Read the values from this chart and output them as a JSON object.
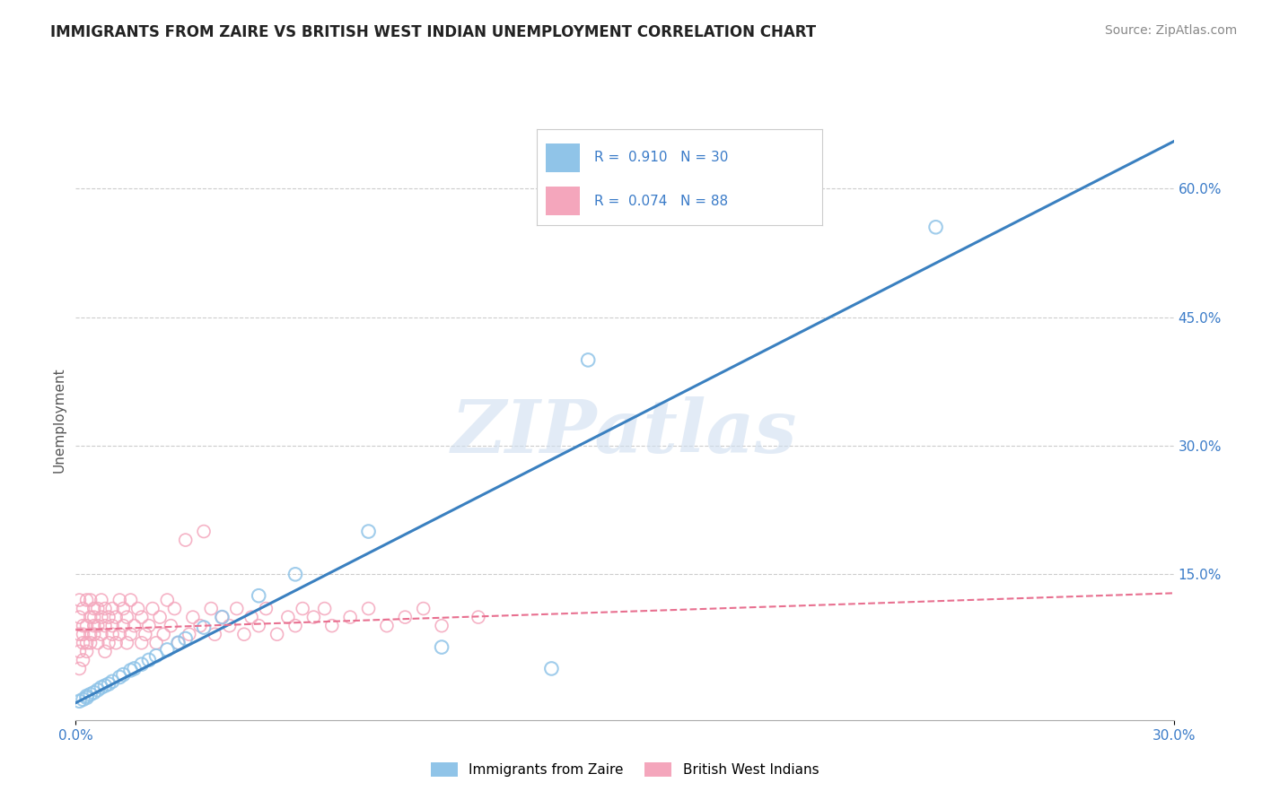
{
  "title": "IMMIGRANTS FROM ZAIRE VS BRITISH WEST INDIAN UNEMPLOYMENT CORRELATION CHART",
  "source": "Source: ZipAtlas.com",
  "ylabel": "Unemployment",
  "xlim": [
    0.0,
    0.3
  ],
  "ylim": [
    -0.02,
    0.68
  ],
  "xtick_vals": [
    0.0,
    0.3
  ],
  "xtick_labels": [
    "0.0%",
    "30.0%"
  ],
  "ytick_vals_right": [
    0.15,
    0.3,
    0.45,
    0.6
  ],
  "ytick_labels_right": [
    "15.0%",
    "30.0%",
    "45.0%",
    "60.0%"
  ],
  "grid_color": "#cccccc",
  "background_color": "#ffffff",
  "blue_color": "#90c4e8",
  "pink_color": "#f4a6bc",
  "blue_line_color": "#3a80c0",
  "pink_line_color": "#e87090",
  "R_blue": 0.91,
  "N_blue": 30,
  "R_pink": 0.074,
  "N_pink": 88,
  "legend_label_blue": "Immigrants from Zaire",
  "legend_label_pink": "British West Indians",
  "watermark": "ZIPatlas",
  "title_fontsize": 12,
  "source_fontsize": 10,
  "blue_scatter_x": [
    0.001,
    0.002,
    0.003,
    0.003,
    0.004,
    0.005,
    0.006,
    0.007,
    0.008,
    0.009,
    0.01,
    0.012,
    0.013,
    0.015,
    0.016,
    0.018,
    0.02,
    0.022,
    0.025,
    0.028,
    0.03,
    0.035,
    0.04,
    0.05,
    0.06,
    0.08,
    0.1,
    0.13,
    0.14,
    0.235
  ],
  "blue_scatter_y": [
    0.002,
    0.004,
    0.006,
    0.008,
    0.01,
    0.012,
    0.015,
    0.018,
    0.02,
    0.022,
    0.025,
    0.03,
    0.033,
    0.038,
    0.04,
    0.045,
    0.05,
    0.055,
    0.062,
    0.07,
    0.075,
    0.088,
    0.1,
    0.125,
    0.15,
    0.2,
    0.065,
    0.04,
    0.4,
    0.555
  ],
  "pink_scatter_x": [
    0.001,
    0.001,
    0.001,
    0.001,
    0.001,
    0.002,
    0.002,
    0.002,
    0.002,
    0.002,
    0.003,
    0.003,
    0.003,
    0.003,
    0.004,
    0.004,
    0.004,
    0.004,
    0.005,
    0.005,
    0.005,
    0.005,
    0.006,
    0.006,
    0.006,
    0.007,
    0.007,
    0.007,
    0.008,
    0.008,
    0.008,
    0.009,
    0.009,
    0.01,
    0.01,
    0.01,
    0.011,
    0.011,
    0.012,
    0.012,
    0.013,
    0.013,
    0.014,
    0.014,
    0.015,
    0.015,
    0.016,
    0.017,
    0.018,
    0.018,
    0.019,
    0.02,
    0.021,
    0.022,
    0.023,
    0.024,
    0.025,
    0.026,
    0.027,
    0.028,
    0.03,
    0.031,
    0.032,
    0.034,
    0.035,
    0.037,
    0.038,
    0.04,
    0.042,
    0.044,
    0.046,
    0.048,
    0.05,
    0.052,
    0.055,
    0.058,
    0.06,
    0.062,
    0.065,
    0.068,
    0.07,
    0.075,
    0.08,
    0.085,
    0.09,
    0.095,
    0.1,
    0.11
  ],
  "pink_scatter_y": [
    0.04,
    0.06,
    0.08,
    0.1,
    0.12,
    0.05,
    0.07,
    0.09,
    0.11,
    0.08,
    0.06,
    0.09,
    0.12,
    0.07,
    0.08,
    0.1,
    0.12,
    0.07,
    0.09,
    0.11,
    0.08,
    0.1,
    0.07,
    0.09,
    0.11,
    0.08,
    0.1,
    0.12,
    0.06,
    0.09,
    0.11,
    0.07,
    0.1,
    0.08,
    0.11,
    0.09,
    0.07,
    0.1,
    0.08,
    0.12,
    0.09,
    0.11,
    0.07,
    0.1,
    0.08,
    0.12,
    0.09,
    0.11,
    0.07,
    0.1,
    0.08,
    0.09,
    0.11,
    0.07,
    0.1,
    0.08,
    0.12,
    0.09,
    0.11,
    0.07,
    0.19,
    0.08,
    0.1,
    0.09,
    0.2,
    0.11,
    0.08,
    0.1,
    0.09,
    0.11,
    0.08,
    0.1,
    0.09,
    0.11,
    0.08,
    0.1,
    0.09,
    0.11,
    0.1,
    0.11,
    0.09,
    0.1,
    0.11,
    0.09,
    0.1,
    0.11,
    0.09,
    0.1
  ],
  "blue_trend_x": [
    0.0,
    0.3
  ],
  "blue_trend_y": [
    0.0,
    0.655
  ],
  "pink_trend_x": [
    0.0,
    0.3
  ],
  "pink_trend_y": [
    0.085,
    0.128
  ]
}
